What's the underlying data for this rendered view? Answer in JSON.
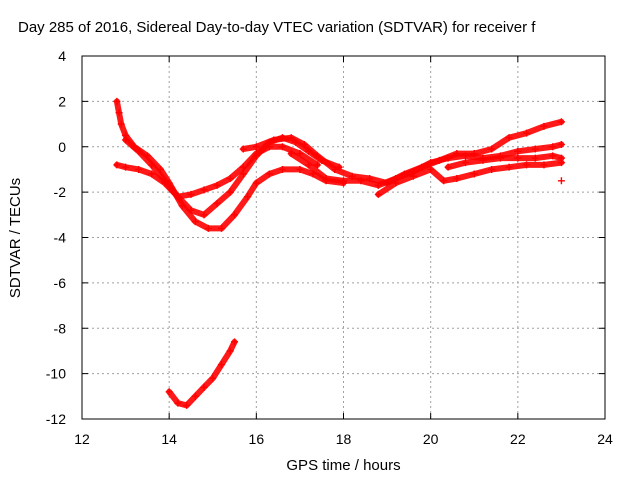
{
  "chart_data": {
    "type": "scatter",
    "title": "Day 285 of 2016, Sidereal Day-to-day VTEC variation (SDTVAR) for receiver f",
    "xlabel": "GPS time / hours",
    "ylabel": "SDTVAR / TECUs",
    "xlim": [
      12,
      24
    ],
    "ylim": [
      -12,
      4
    ],
    "xticks": [
      12,
      14,
      16,
      18,
      20,
      22,
      24
    ],
    "yticks": [
      -12,
      -10,
      -8,
      -6,
      -4,
      -2,
      0,
      2,
      4
    ],
    "grid": true,
    "marker": "+",
    "color": "#ff0000",
    "series": [
      {
        "x": [
          12.8,
          12.85,
          12.9,
          13.0,
          13.2,
          13.5,
          13.8,
          14.0,
          14.3,
          14.6,
          14.9,
          15.2,
          15.5,
          15.8,
          16.0,
          16.3,
          16.6,
          17.0,
          17.3,
          17.6,
          18.0
        ],
        "y": [
          2.0,
          1.5,
          1.0,
          0.5,
          0.0,
          -0.4,
          -1.0,
          -1.6,
          -2.6,
          -3.3,
          -3.6,
          -3.6,
          -3.0,
          -2.2,
          -1.6,
          -1.2,
          -1.0,
          -1.0,
          -1.2,
          -1.5,
          -1.6
        ]
      },
      {
        "x": [
          12.8,
          13.0,
          13.3,
          13.6,
          13.9,
          14.2,
          14.5,
          14.8,
          15.1,
          15.4,
          15.7,
          16.0,
          16.3,
          16.6,
          17.0,
          17.4
        ],
        "y": [
          -0.8,
          -0.9,
          -1.0,
          -1.2,
          -1.6,
          -2.2,
          -2.1,
          -1.9,
          -1.7,
          -1.4,
          -0.9,
          -0.3,
          0.0,
          0.0,
          -0.3,
          -0.8
        ]
      },
      {
        "x": [
          13.0,
          13.3,
          13.6,
          13.9,
          14.2,
          14.5,
          14.8,
          15.1,
          15.4,
          15.7,
          16.0,
          16.3,
          16.6,
          16.9,
          17.2,
          17.5,
          17.9
        ],
        "y": [
          0.3,
          -0.2,
          -0.8,
          -1.5,
          -2.2,
          -2.8,
          -3.0,
          -2.5,
          -2.0,
          -1.2,
          -0.4,
          0.2,
          0.4,
          0.2,
          -0.2,
          -0.6,
          -0.9
        ]
      },
      {
        "x": [
          15.7,
          16.0,
          16.4,
          16.8,
          17.1,
          17.4,
          17.8,
          18.2,
          18.6,
          19.0,
          19.4,
          19.8,
          20.2,
          20.6,
          21.0,
          21.4,
          21.8,
          22.2,
          22.6,
          23.0
        ],
        "y": [
          -0.1,
          0.0,
          0.3,
          0.4,
          0.1,
          -0.4,
          -1.0,
          -1.3,
          -1.4,
          -1.6,
          -1.2,
          -0.9,
          -0.6,
          -0.3,
          -0.3,
          -0.1,
          0.4,
          0.6,
          0.9,
          1.1
        ]
      },
      {
        "x": [
          16.8,
          17.2,
          17.6,
          18.0,
          18.4,
          18.8,
          19.2,
          19.6,
          20.0,
          20.4,
          20.8,
          21.2,
          21.6,
          22.0,
          22.4,
          22.8,
          23.0
        ],
        "y": [
          -0.3,
          -0.8,
          -1.4,
          -1.5,
          -1.5,
          -1.7,
          -1.4,
          -1.1,
          -0.7,
          -0.5,
          -0.4,
          -0.5,
          -0.4,
          -0.2,
          -0.1,
          0.0,
          0.1
        ]
      },
      {
        "x": [
          18.8,
          19.2,
          19.6,
          20.0,
          20.3,
          20.6,
          21.0,
          21.4,
          21.8,
          22.2,
          22.6,
          23.0
        ],
        "y": [
          -2.1,
          -1.6,
          -1.3,
          -1.0,
          -1.5,
          -1.4,
          -1.2,
          -1.0,
          -0.9,
          -0.8,
          -0.8,
          -0.7
        ]
      },
      {
        "x": [
          20.4,
          20.8,
          21.2,
          21.6,
          22.0,
          22.4,
          22.8,
          23.0
        ],
        "y": [
          -0.9,
          -0.7,
          -0.6,
          -0.5,
          -0.5,
          -0.5,
          -0.4,
          -0.5
        ]
      },
      {
        "x": [
          14.0,
          14.2,
          14.4,
          14.6,
          14.8,
          15.0,
          15.2,
          15.4,
          15.5
        ],
        "y": [
          -10.8,
          -11.3,
          -11.4,
          -11.0,
          -10.6,
          -10.2,
          -9.6,
          -9.0,
          -8.6
        ]
      },
      {
        "x": [
          23.0
        ],
        "y": [
          -1.5
        ]
      }
    ]
  }
}
